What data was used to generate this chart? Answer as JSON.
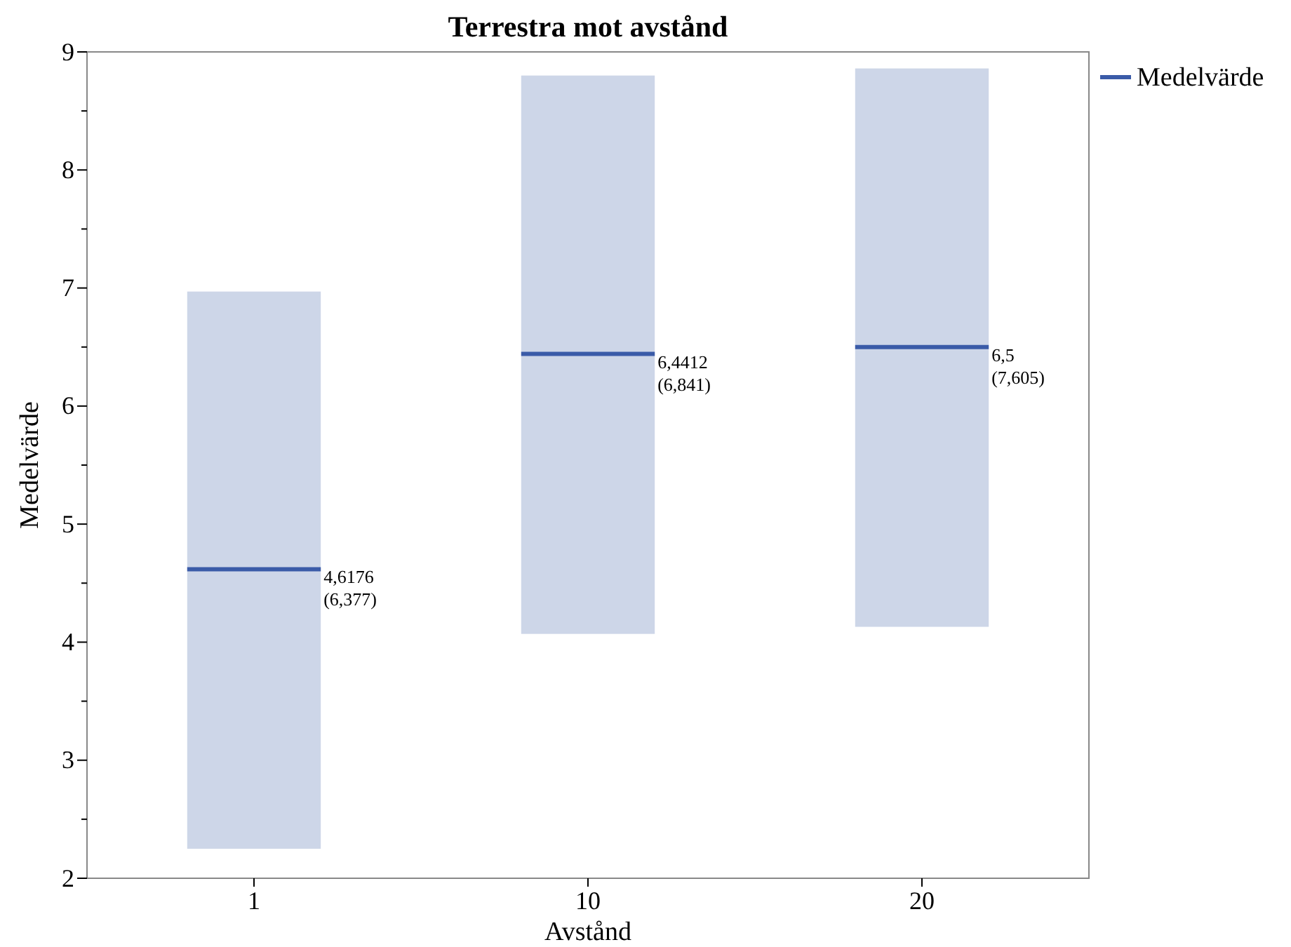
{
  "chart_data": {
    "type": "box",
    "title": "Terrestra mot avstånd",
    "xlabel": "Avstånd",
    "ylabel": "Medelvärde",
    "categories": [
      "1",
      "10",
      "20"
    ],
    "series": [
      {
        "name": "Medelvärde",
        "color": "#3a5ba8",
        "colors": [
          "#cdd6e8",
          "#cdd6e8",
          "#cdd6e8"
        ],
        "boxes": [
          {
            "low": 2.25,
            "q1": 2.25,
            "median": 4.6176,
            "q3": 6.97,
            "high": 6.97
          },
          {
            "low": 4.07,
            "q1": 4.07,
            "median": 6.4412,
            "q3": 8.8,
            "high": 8.8
          },
          {
            "low": 4.13,
            "q1": 4.13,
            "median": 6.5,
            "q3": 8.86,
            "high": 8.86
          }
        ]
      }
    ],
    "annotations": [
      "4,6176\n(6,377)",
      "6,4412\n(6,841)",
      "6,5\n(7,605)"
    ],
    "ylim": [
      2,
      9
    ],
    "yticks": [
      2,
      {
        "value": 2.5,
        "label": null
      },
      3,
      {
        "value": 3.5,
        "label": null
      },
      4,
      {
        "value": 4.5,
        "label": null
      },
      5,
      {
        "value": 5.5,
        "label": null
      },
      6,
      {
        "value": 6.5,
        "label": null
      },
      7,
      {
        "value": 7.5,
        "label": null
      },
      8,
      {
        "value": 8.5,
        "label": null
      },
      9
    ],
    "legend": "top right"
  }
}
